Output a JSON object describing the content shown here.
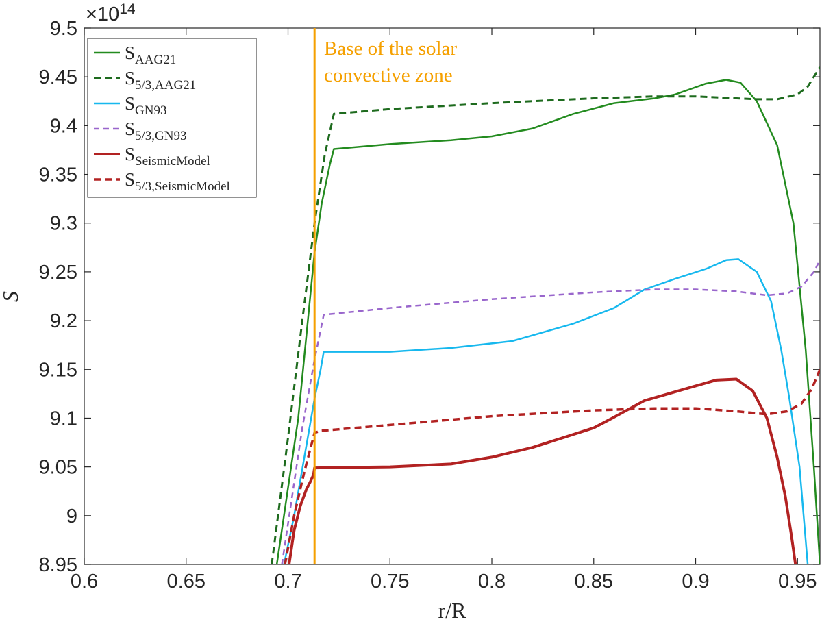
{
  "chart_data": {
    "type": "line",
    "xlabel": "r/R",
    "ylabel": "S",
    "exponent_label": "×10",
    "exponent_power": "14",
    "xlim": [
      0.6,
      0.961
    ],
    "ylim": [
      8.95,
      9.5
    ],
    "x_ticks": [
      0.6,
      0.65,
      0.7,
      0.75,
      0.8,
      0.85,
      0.9,
      0.95
    ],
    "x_tick_labels": [
      "0.6",
      "0.65",
      "0.7",
      "0.75",
      "0.8",
      "0.85",
      "0.9",
      "0.95"
    ],
    "y_ticks": [
      8.95,
      9.0,
      9.05,
      9.1,
      9.15,
      9.2,
      9.25,
      9.3,
      9.35,
      9.4,
      9.45,
      9.5
    ],
    "y_tick_labels": [
      "8.95",
      "9",
      "9.05",
      "9.1",
      "9.15",
      "9.2",
      "9.25",
      "9.3",
      "9.35",
      "9.4",
      "9.45",
      "9.5"
    ],
    "grid": false,
    "legend_position": "top-left",
    "vline": {
      "x": 0.713,
      "color": "#f5a000",
      "label_line1": "Base of the solar",
      "label_line2": "convective zone"
    },
    "series": [
      {
        "name_main": "S",
        "name_sub": "AAG21",
        "color": "#238b1f",
        "dash": "solid",
        "width": 2.5,
        "points": [
          [
            0.6945,
            8.95
          ],
          [
            0.705,
            9.1
          ],
          [
            0.713,
            9.27
          ],
          [
            0.7165,
            9.32
          ],
          [
            0.7205,
            9.36
          ],
          [
            0.7225,
            9.376
          ],
          [
            0.75,
            9.381
          ],
          [
            0.78,
            9.385
          ],
          [
            0.8,
            9.389
          ],
          [
            0.82,
            9.397
          ],
          [
            0.84,
            9.412
          ],
          [
            0.86,
            9.423
          ],
          [
            0.88,
            9.428
          ],
          [
            0.89,
            9.432
          ],
          [
            0.905,
            9.443
          ],
          [
            0.915,
            9.447
          ],
          [
            0.922,
            9.444
          ],
          [
            0.93,
            9.425
          ],
          [
            0.94,
            9.38
          ],
          [
            0.948,
            9.3
          ],
          [
            0.954,
            9.17
          ],
          [
            0.958,
            9.05
          ],
          [
            0.961,
            8.95
          ]
        ]
      },
      {
        "name_main": "S",
        "name_sub": "5/3,AAG21",
        "color": "#1e6b1e",
        "dash": "dashed",
        "width": 3,
        "points": [
          [
            0.692,
            8.95
          ],
          [
            0.7,
            9.08
          ],
          [
            0.707,
            9.2
          ],
          [
            0.713,
            9.3
          ],
          [
            0.718,
            9.37
          ],
          [
            0.7225,
            9.412
          ],
          [
            0.75,
            9.417
          ],
          [
            0.8,
            9.423
          ],
          [
            0.85,
            9.428
          ],
          [
            0.88,
            9.43
          ],
          [
            0.9,
            9.43
          ],
          [
            0.93,
            9.427
          ],
          [
            0.94,
            9.427
          ],
          [
            0.95,
            9.432
          ],
          [
            0.955,
            9.44
          ],
          [
            0.961,
            9.46
          ]
        ]
      },
      {
        "name_main": "S",
        "name_sub": "GN93",
        "color": "#17b8ee",
        "dash": "solid",
        "width": 2.5,
        "points": [
          [
            0.698,
            8.95
          ],
          [
            0.703,
            9.0
          ],
          [
            0.708,
            9.06
          ],
          [
            0.713,
            9.12
          ],
          [
            0.716,
            9.15
          ],
          [
            0.7175,
            9.168
          ],
          [
            0.75,
            9.168
          ],
          [
            0.78,
            9.172
          ],
          [
            0.81,
            9.179
          ],
          [
            0.84,
            9.197
          ],
          [
            0.86,
            9.213
          ],
          [
            0.875,
            9.232
          ],
          [
            0.89,
            9.243
          ],
          [
            0.905,
            9.253
          ],
          [
            0.915,
            9.262
          ],
          [
            0.921,
            9.263
          ],
          [
            0.93,
            9.25
          ],
          [
            0.937,
            9.22
          ],
          [
            0.942,
            9.17
          ],
          [
            0.946,
            9.12
          ],
          [
            0.951,
            9.05
          ],
          [
            0.955,
            8.95
          ]
        ]
      },
      {
        "name_main": "S",
        "name_sub": "5/3,GN93",
        "color": "#9966cc",
        "dash": "dashed-fine",
        "width": 2.5,
        "points": [
          [
            0.697,
            8.95
          ],
          [
            0.702,
            9.02
          ],
          [
            0.707,
            9.09
          ],
          [
            0.713,
            9.16
          ],
          [
            0.7175,
            9.206
          ],
          [
            0.75,
            9.213
          ],
          [
            0.8,
            9.222
          ],
          [
            0.85,
            9.229
          ],
          [
            0.88,
            9.232
          ],
          [
            0.9,
            9.232
          ],
          [
            0.92,
            9.23
          ],
          [
            0.935,
            9.226
          ],
          [
            0.945,
            9.228
          ],
          [
            0.952,
            9.235
          ],
          [
            0.958,
            9.25
          ],
          [
            0.961,
            9.262
          ]
        ]
      },
      {
        "name_main": "S",
        "name_sub": "SeismicModel",
        "color": "#b22222",
        "dash": "solid",
        "width": 4,
        "points": [
          [
            0.7005,
            8.95
          ],
          [
            0.703,
            8.985
          ],
          [
            0.706,
            9.01
          ],
          [
            0.709,
            9.027
          ],
          [
            0.711,
            9.035
          ],
          [
            0.7125,
            9.042
          ],
          [
            0.713,
            9.049
          ],
          [
            0.75,
            9.05
          ],
          [
            0.78,
            9.053
          ],
          [
            0.8,
            9.06
          ],
          [
            0.82,
            9.07
          ],
          [
            0.85,
            9.09
          ],
          [
            0.86,
            9.101
          ],
          [
            0.875,
            9.118
          ],
          [
            0.895,
            9.13
          ],
          [
            0.91,
            9.139
          ],
          [
            0.92,
            9.14
          ],
          [
            0.928,
            9.128
          ],
          [
            0.935,
            9.1
          ],
          [
            0.94,
            9.06
          ],
          [
            0.944,
            9.02
          ],
          [
            0.947,
            8.98
          ],
          [
            0.949,
            8.95
          ]
        ]
      },
      {
        "name_main": "S",
        "name_sub": "5/3,SeismicModel",
        "color": "#b22222",
        "dash": "dashed",
        "width": 3.5,
        "points": [
          [
            0.6985,
            8.95
          ],
          [
            0.703,
            9.0
          ],
          [
            0.708,
            9.045
          ],
          [
            0.713,
            9.085
          ],
          [
            0.716,
            9.087
          ],
          [
            0.75,
            9.093
          ],
          [
            0.8,
            9.102
          ],
          [
            0.85,
            9.108
          ],
          [
            0.88,
            9.11
          ],
          [
            0.9,
            9.11
          ],
          [
            0.92,
            9.107
          ],
          [
            0.935,
            9.104
          ],
          [
            0.945,
            9.107
          ],
          [
            0.952,
            9.115
          ],
          [
            0.957,
            9.13
          ],
          [
            0.961,
            9.15
          ]
        ]
      }
    ]
  }
}
